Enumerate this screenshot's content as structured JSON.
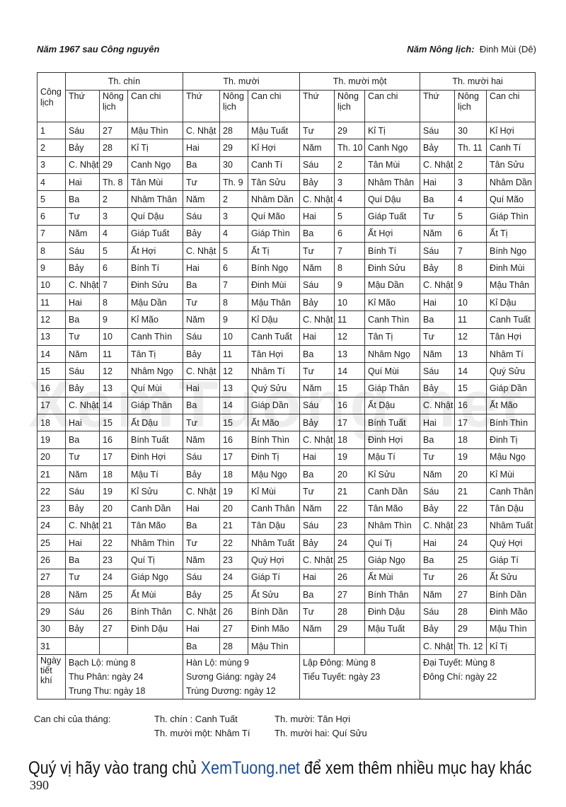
{
  "header": {
    "left": "Năm 1967  sau Công nguyên",
    "right_label": "Năm Nông lịch:",
    "right_value": "Đinh Mùi (Dê)"
  },
  "table": {
    "col_cong_lich": "Công lịch",
    "months": [
      "Th. chín",
      "Th. mười",
      "Th. mười một",
      "Th. mười hai"
    ],
    "sub_headers": [
      "Thứ",
      "Nông lịch",
      "Can chi"
    ],
    "rows": [
      [
        "1",
        "Sáu",
        "27",
        "Mậu Thìn",
        "C. Nhật",
        "28",
        "Mậu Tuất",
        "Tư",
        "29",
        "Kỉ Tị",
        "Sáu",
        "30",
        "Kỉ Hợi"
      ],
      [
        "2",
        "Bảy",
        "28",
        "Kỉ Tị",
        "Hai",
        "29",
        "Kỉ Hợi",
        "Năm",
        "Th. 10",
        "Canh Ngọ",
        "Bảy",
        "Th. 11",
        "Canh Tí"
      ],
      [
        "3",
        "C. Nhật",
        "29",
        "Canh Ngọ",
        "Ba",
        "30",
        "Canh Tí",
        "Sáu",
        "2",
        "Tân Mùi",
        "C. Nhật",
        "2",
        "Tân Sửu"
      ],
      [
        "4",
        "Hai",
        "Th. 8",
        "Tân Mùi",
        "Tư",
        "Th. 9",
        "Tân Sửu",
        "Bảy",
        "3",
        "Nhâm Thân",
        "Hai",
        "3",
        "Nhâm Dần"
      ],
      [
        "5",
        "Ba",
        "2",
        "Nhâm Thân",
        "Năm",
        "2",
        "Nhâm Dần",
        "C. Nhật",
        "4",
        "Quí Dậu",
        "Ba",
        "4",
        "Quí Mão"
      ],
      [
        "6",
        "Tư",
        "3",
        "Quí Dậu",
        "Sáu",
        "3",
        "Quí Mão",
        "Hai",
        "5",
        "Giáp Tuất",
        "Tư",
        "5",
        "Giáp Thìn"
      ],
      [
        "7",
        "Năm",
        "4",
        "Giáp Tuất",
        "Bảy",
        "4",
        "Giáp Thìn",
        "Ba",
        "6",
        "Ất Hợi",
        "Năm",
        "6",
        "Ất Tị"
      ],
      [
        "8",
        "Sáu",
        "5",
        "Ất Hợi",
        "C. Nhật",
        "5",
        "Ất Tị",
        "Tư",
        "7",
        "Bính Tí",
        "Sáu",
        "7",
        "Bính Ngọ"
      ],
      [
        "9",
        "Bảy",
        "6",
        "Bính Tí",
        "Hai",
        "6",
        "Bính Ngọ",
        "Năm",
        "8",
        "Đinh Sửu",
        "Bảy",
        "8",
        "Đinh Mùi"
      ],
      [
        "10",
        "C. Nhật",
        "7",
        "Đinh Sửu",
        "Ba",
        "7",
        "Đinh Mùi",
        "Sáu",
        "9",
        "Mậu Dần",
        "C. Nhật",
        "9",
        "Mậu Thân"
      ],
      [
        "11",
        "Hai",
        "8",
        "Mậu Dần",
        "Tư",
        "8",
        "Mậu Thân",
        "Bảy",
        "10",
        "Kỉ Mão",
        "Hai",
        "10",
        "Kỉ Dậu"
      ],
      [
        "12",
        "Ba",
        "9",
        "Kỉ Mão",
        "Năm",
        "9",
        "Kỉ Dậu",
        "C. Nhật",
        "11",
        "Canh Thìn",
        "Ba",
        "11",
        "Canh Tuất"
      ],
      [
        "13",
        "Tư",
        "10",
        "Canh Thìn",
        "Sáu",
        "10",
        "Canh Tuất",
        "Hai",
        "12",
        "Tân Tị",
        "Tư",
        "12",
        "Tân Hợi"
      ],
      [
        "14",
        "Năm",
        "11",
        "Tân Tị",
        "Bảy",
        "11",
        "Tân Hợi",
        "Ba",
        "13",
        "Nhâm Ngọ",
        "Năm",
        "13",
        "Nhâm Tí"
      ],
      [
        "15",
        "Sáu",
        "12",
        "Nhâm Ngọ",
        "C. Nhật",
        "12",
        "Nhâm Tí",
        "Tư",
        "14",
        "Quí Mùi",
        "Sáu",
        "14",
        "Quý Sửu"
      ],
      [
        "16",
        "Bảy",
        "13",
        "Quí Mùi",
        "Hai",
        "13",
        "Quý Sửu",
        "Năm",
        "15",
        "Giáp Thân",
        "Bảy",
        "15",
        "Giáp Dần"
      ],
      [
        "17",
        "C. Nhật",
        "14",
        "Giáp Thân",
        "Ba",
        "14",
        "Giáp Dần",
        "Sáu",
        "16",
        "Ất Dậu",
        "C. Nhật",
        "16",
        "Ất Mão"
      ],
      [
        "18",
        "Hai",
        "15",
        "Ất Dậu",
        "Tư",
        "15",
        "Ất Mão",
        "Bảy",
        "17",
        "Bính Tuất",
        "Hai",
        "17",
        "Bính Thìn"
      ],
      [
        "19",
        "Ba",
        "16",
        "Bính Tuất",
        "Năm",
        "16",
        "Bính Thìn",
        "C. Nhật",
        "18",
        "Đinh Hợi",
        "Ba",
        "18",
        "Đinh Tị"
      ],
      [
        "20",
        "Tư",
        "17",
        "Đinh Hợi",
        "Sáu",
        "17",
        "Đinh Tị",
        "Hai",
        "19",
        "Mậu Tí",
        "Tư",
        "19",
        "Mậu Ngọ"
      ],
      [
        "21",
        "Năm",
        "18",
        "Mậu Tí",
        "Bảy",
        "18",
        "Mậu Ngọ",
        "Ba",
        "20",
        "Kỉ Sửu",
        "Năm",
        "20",
        "Kỉ Mùi"
      ],
      [
        "22",
        "Sáu",
        "19",
        "Kỉ Sửu",
        "C. Nhật",
        "19",
        "Kỉ Mùi",
        "Tư",
        "21",
        "Canh Dần",
        "Sáu",
        "21",
        "Canh Thân"
      ],
      [
        "23",
        "Bảy",
        "20",
        "Canh Dần",
        "Hai",
        "20",
        "Canh Thân",
        "Năm",
        "22",
        "Tân Mão",
        "Bảy",
        "22",
        "Tân Dậu"
      ],
      [
        "24",
        "C. Nhật",
        "21",
        "Tân Mão",
        "Ba",
        "21",
        "Tân Dậu",
        "Sáu",
        "23",
        "Nhâm Thìn",
        "C. Nhật",
        "23",
        "Nhâm Tuất"
      ],
      [
        "25",
        "Hai",
        "22",
        "Nhâm Thìn",
        "Tư",
        "22",
        "Nhâm Tuất",
        "Bảy",
        "24",
        "Quí Tị",
        "Hai",
        "24",
        "Quý Hợi"
      ],
      [
        "26",
        "Ba",
        "23",
        "Quí Tị",
        "Năm",
        "23",
        "Quý Hợi",
        "C. Nhật",
        "25",
        "Giáp Ngọ",
        "Ba",
        "25",
        "Giáp Tí"
      ],
      [
        "27",
        "Tư",
        "24",
        "Giáp Ngọ",
        "Sáu",
        "24",
        "Giáp Tí",
        "Hai",
        "26",
        "Ất Mùi",
        "Tư",
        "26",
        "Ất Sửu"
      ],
      [
        "28",
        "Năm",
        "25",
        "Ất Mùi",
        "Bảy",
        "25",
        "Ất Sửu",
        "Ba",
        "27",
        "Bính Thân",
        "Năm",
        "27",
        "Bính Dần"
      ],
      [
        "29",
        "Sáu",
        "26",
        "Bính Thân",
        "C. Nhật",
        "26",
        "Bính Dần",
        "Tư",
        "28",
        "Đinh Dậu",
        "Sáu",
        "28",
        "Đinh Mão"
      ],
      [
        "30",
        "Bảy",
        "27",
        "Đinh Dậu",
        "Hai",
        "27",
        "Đinh Mão",
        "Năm",
        "29",
        "Mậu Tuất",
        "Bảy",
        "29",
        "Mậu Thìn"
      ],
      [
        "31",
        "",
        "",
        "",
        "Ba",
        "28",
        "Mậu Thìn",
        "",
        "",
        "",
        "C. Nhật",
        "Th. 12",
        "Kỉ Tị"
      ]
    ],
    "solar_terms_label": "Ngày tiết khí",
    "solar_terms": [
      [
        "Bạch Lộ: mùng 8",
        "Thu Phân: ngày 24",
        "Trung Thu: ngày 18"
      ],
      [
        "Hàn Lộ: mùng 9",
        "Sương Giáng: ngày 24",
        "Trùng Dương: ngày 12"
      ],
      [
        "Lập Đông: Mùng 8",
        "Tiểu Tuyết: ngày 23"
      ],
      [
        "Đại Tuyết: Mùng 8",
        "Đông Chí: ngày 22"
      ]
    ]
  },
  "month_can_chi": {
    "label": "Can chi của tháng:",
    "items": [
      "Th. chín : Canh Tuất",
      "Th. mười: Tân  Hợi",
      "Th. mười một:  Nhâm Tí",
      "Th. mười hai: Quí Sửu"
    ]
  },
  "watermark": "XemTuong.net",
  "banner": {
    "before": "Quý vị hãy vào trang chủ ",
    "site": "XemTuong.net",
    "after": " để xem thêm nhiều mục hay khác"
  },
  "page_number": "390"
}
